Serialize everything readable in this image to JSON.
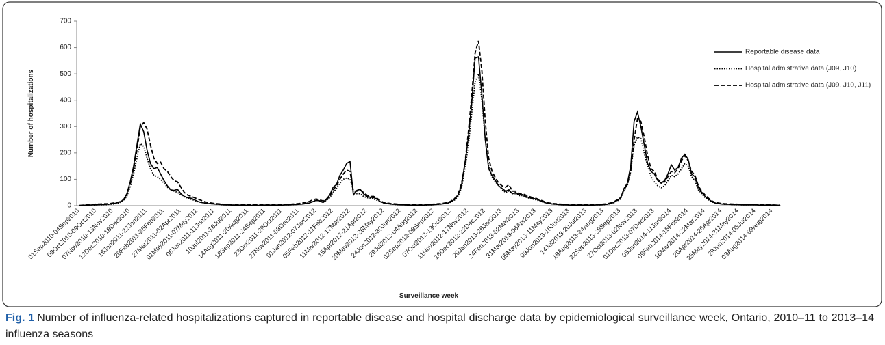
{
  "chart_data": {
    "type": "line",
    "x_label": "Surveillance week",
    "y_label": "Number of hospitalizations",
    "ylim": [
      0,
      700
    ],
    "yticks": [
      0,
      100,
      200,
      300,
      400,
      500,
      600,
      700
    ],
    "grid": false,
    "legend": "top-right",
    "categories": [
      "01Sep2010-04Sep2010",
      null,
      null,
      null,
      null,
      "03Oct2010-09Oct2010",
      null,
      null,
      null,
      null,
      "07Nov2010-13Nov2010",
      null,
      null,
      null,
      null,
      "12Dec2010-18Dec2010",
      null,
      null,
      null,
      null,
      "16Jan2011-22Jan2011",
      null,
      null,
      null,
      null,
      "20Feb2011-26Feb2011",
      null,
      null,
      null,
      null,
      "27Mar2011-02Apr2011",
      null,
      null,
      null,
      null,
      "01May2011-07May2011",
      null,
      null,
      null,
      null,
      "05Jun2011-11Jun2011",
      null,
      null,
      null,
      null,
      "10Jul2011-16Jul2011",
      null,
      null,
      null,
      null,
      "14Aug2011-20Aug2011",
      null,
      null,
      null,
      null,
      "18Sep2011-24Sep2011",
      null,
      null,
      null,
      null,
      "23Oct2011-29Oct2011",
      null,
      null,
      null,
      null,
      "27Nov2011-03Dec2011",
      null,
      null,
      null,
      null,
      "01Jan2012-07Jan2012",
      null,
      null,
      null,
      null,
      "05Feb2012-11Feb2012",
      null,
      null,
      null,
      null,
      "11Mar2012-17Mar2012",
      null,
      null,
      null,
      null,
      "15Apr2012-21Apr2012",
      null,
      null,
      null,
      null,
      "20May2012-26May2012",
      null,
      null,
      null,
      null,
      "24Jun2012-30Jun2012",
      null,
      null,
      null,
      null,
      "29Jul2012-04Aug2012",
      null,
      null,
      null,
      null,
      "02Sep2012-08Sep2012",
      null,
      null,
      null,
      null,
      "07Oct2012-13Oct2012",
      null,
      null,
      null,
      null,
      "11Nov2012-17Nov2012",
      null,
      null,
      null,
      null,
      "16Dec2012-22Dec2012",
      null,
      null,
      null,
      null,
      "20Jan2013-26Jan2013",
      null,
      null,
      null,
      null,
      "24Feb2013-02Mar2013",
      null,
      null,
      null,
      null,
      "31Mar2013-06Apr2013",
      null,
      null,
      null,
      null,
      "05May2013-11May2013",
      null,
      null,
      null,
      null,
      "09Jun2013-15Jun2013",
      null,
      null,
      null,
      null,
      "14Jul2013-20Jul2013",
      null,
      null,
      null,
      null,
      "18Aug2013-24Aug2013",
      null,
      null,
      null,
      null,
      "22Sep2013-28Sep2013",
      null,
      null,
      null,
      null,
      "27Oct2013-02Nov2013",
      null,
      null,
      null,
      null,
      "01Dec2013-07Dec2013",
      null,
      null,
      null,
      null,
      "05Jan2014-11Jan2014",
      null,
      null,
      null,
      null,
      "09Feb2014-15Feb2014",
      null,
      null,
      null,
      null,
      "16Mar2014-22Mar2014",
      null,
      null,
      null,
      null,
      "20Apr2014-26Apr2014",
      null,
      null,
      null,
      null,
      "25May2014-31May2014",
      null,
      null,
      null,
      null,
      "29Jun2014-05Jul2014",
      null,
      null,
      null,
      null,
      "03Aug2014-09Aug2014",
      null,
      null
    ],
    "series": [
      {
        "name": "Reportable disease data",
        "color": "#000000",
        "style": "solid",
        "values": [
          0,
          1,
          2,
          2,
          3,
          3,
          4,
          4,
          5,
          6,
          8,
          10,
          14,
          22,
          45,
          90,
          150,
          230,
          310,
          280,
          210,
          160,
          140,
          145,
          120,
          95,
          75,
          60,
          58,
          62,
          45,
          35,
          30,
          28,
          22,
          16,
          12,
          10,
          8,
          7,
          6,
          5,
          4,
          3,
          3,
          2,
          2,
          2,
          2,
          2,
          1,
          1,
          1,
          1,
          2,
          2,
          2,
          2,
          2,
          2,
          2,
          3,
          3,
          4,
          4,
          5,
          6,
          8,
          10,
          15,
          20,
          18,
          12,
          25,
          40,
          70,
          80,
          115,
          135,
          160,
          168,
          40,
          58,
          62,
          45,
          35,
          32,
          30,
          25,
          15,
          10,
          8,
          6,
          5,
          4,
          3,
          3,
          2,
          2,
          2,
          2,
          2,
          2,
          3,
          3,
          4,
          5,
          6,
          8,
          10,
          15,
          25,
          40,
          80,
          160,
          260,
          390,
          560,
          565,
          420,
          250,
          140,
          115,
          95,
          75,
          65,
          55,
          60,
          45,
          50,
          40,
          42,
          35,
          30,
          28,
          25,
          20,
          15,
          10,
          8,
          6,
          5,
          4,
          3,
          3,
          2,
          2,
          2,
          2,
          2,
          2,
          2,
          2,
          3,
          3,
          4,
          5,
          8,
          12,
          20,
          28,
          65,
          85,
          150,
          320,
          355,
          300,
          230,
          160,
          130,
          120,
          95,
          85,
          95,
          120,
          155,
          135,
          145,
          180,
          195,
          175,
          120,
          110,
          70,
          50,
          35,
          25,
          15,
          10,
          8,
          6,
          5,
          5,
          4,
          4,
          4,
          3,
          3,
          3,
          3,
          3,
          2,
          2,
          2,
          2,
          2,
          2,
          1
        ]
      },
      {
        "name": "Hospital admistrative data (J09, J10)",
        "color": "#000000",
        "style": "dotted",
        "values": [
          0,
          1,
          1,
          2,
          2,
          3,
          3,
          4,
          4,
          5,
          6,
          8,
          12,
          18,
          35,
          70,
          120,
          180,
          235,
          225,
          180,
          140,
          115,
          110,
          100,
          85,
          70,
          60,
          55,
          50,
          40,
          32,
          28,
          24,
          20,
          15,
          12,
          10,
          8,
          7,
          6,
          5,
          4,
          3,
          3,
          3,
          2,
          2,
          2,
          2,
          2,
          2,
          2,
          2,
          2,
          2,
          2,
          2,
          2,
          2,
          2,
          3,
          3,
          4,
          5,
          6,
          7,
          9,
          12,
          16,
          20,
          18,
          12,
          20,
          30,
          50,
          65,
          85,
          100,
          105,
          100,
          50,
          45,
          45,
          35,
          30,
          28,
          25,
          20,
          14,
          10,
          8,
          6,
          5,
          4,
          4,
          3,
          3,
          2,
          2,
          2,
          2,
          2,
          3,
          3,
          4,
          5,
          6,
          8,
          10,
          14,
          22,
          35,
          70,
          140,
          230,
          350,
          470,
          500,
          400,
          250,
          150,
          110,
          90,
          75,
          60,
          50,
          55,
          45,
          45,
          38,
          38,
          32,
          28,
          25,
          22,
          18,
          14,
          10,
          8,
          6,
          5,
          4,
          3,
          3,
          3,
          2,
          2,
          2,
          2,
          2,
          2,
          2,
          3,
          3,
          4,
          5,
          7,
          10,
          18,
          25,
          55,
          75,
          130,
          230,
          260,
          255,
          200,
          150,
          110,
          90,
          75,
          68,
          75,
          95,
          115,
          110,
          120,
          140,
          160,
          150,
          110,
          95,
          60,
          45,
          30,
          22,
          14,
          10,
          8,
          6,
          5,
          5,
          4,
          4,
          4,
          3,
          3,
          3,
          3,
          3,
          2,
          2,
          2,
          2,
          2,
          2,
          1
        ]
      },
      {
        "name": "Hospital admistrative data (J09, J10, J11)",
        "color": "#000000",
        "style": "dashed",
        "values": [
          1,
          2,
          3,
          4,
          5,
          6,
          6,
          7,
          7,
          8,
          10,
          12,
          15,
          22,
          40,
          80,
          140,
          210,
          300,
          315,
          290,
          230,
          180,
          160,
          165,
          140,
          130,
          110,
          95,
          90,
          70,
          50,
          40,
          35,
          30,
          25,
          20,
          15,
          12,
          10,
          8,
          7,
          6,
          5,
          5,
          4,
          4,
          4,
          4,
          3,
          3,
          3,
          3,
          3,
          4,
          4,
          4,
          4,
          4,
          4,
          4,
          5,
          5,
          6,
          7,
          8,
          10,
          12,
          16,
          22,
          25,
          22,
          18,
          22,
          35,
          60,
          75,
          100,
          120,
          135,
          130,
          55,
          55,
          60,
          50,
          40,
          35,
          35,
          28,
          18,
          12,
          10,
          8,
          7,
          6,
          5,
          5,
          4,
          4,
          4,
          4,
          4,
          4,
          5,
          5,
          6,
          7,
          8,
          10,
          12,
          18,
          28,
          45,
          85,
          160,
          280,
          420,
          580,
          625,
          510,
          320,
          180,
          130,
          105,
          85,
          75,
          70,
          80,
          55,
          55,
          45,
          45,
          40,
          35,
          30,
          28,
          22,
          18,
          12,
          10,
          8,
          7,
          6,
          5,
          5,
          4,
          4,
          4,
          4,
          4,
          4,
          4,
          4,
          5,
          5,
          6,
          7,
          10,
          14,
          22,
          30,
          60,
          80,
          130,
          250,
          330,
          320,
          260,
          190,
          140,
          130,
          100,
          90,
          90,
          110,
          130,
          125,
          140,
          170,
          190,
          170,
          130,
          115,
          75,
          55,
          40,
          28,
          18,
          12,
          10,
          8,
          7,
          7,
          6,
          6,
          5,
          5,
          4,
          4,
          4,
          4,
          3,
          3,
          3,
          3,
          3,
          2,
          2
        ]
      }
    ]
  },
  "caption": {
    "label": "Fig. 1",
    "text": "Number of influenza-related hospitalizations captured in reportable disease and hospital discharge data by epidemiological surveillance week, Ontario, 2010–11 to 2013–14 influenza seasons"
  }
}
